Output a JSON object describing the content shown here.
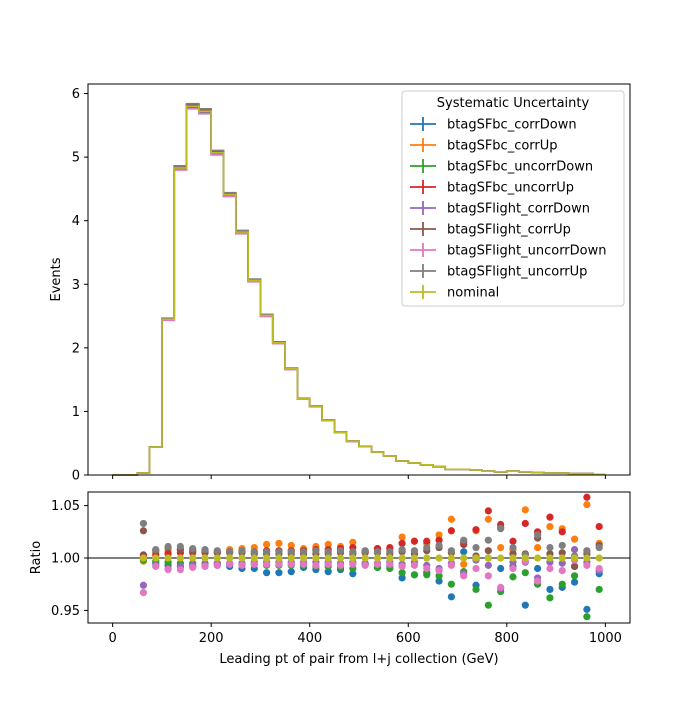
{
  "chart_data": [
    {
      "type": "line",
      "drawstyle": "steps",
      "xlabel": "",
      "ylabel": "Events",
      "xlim": [
        -50,
        1050
      ],
      "ylim": [
        0,
        6.15
      ],
      "x_ticks": [
        "0",
        "200",
        "400",
        "600",
        "800",
        "1000"
      ],
      "y_ticks": [
        "0",
        "1",
        "2",
        "3",
        "4",
        "5",
        "6"
      ],
      "bin_edges": [
        0,
        25,
        50,
        75,
        100,
        125,
        150,
        175,
        200,
        225,
        250,
        275,
        300,
        325,
        350,
        375,
        400,
        425,
        450,
        475,
        500,
        525,
        550,
        575,
        600,
        625,
        650,
        675,
        700,
        725,
        750,
        775,
        800,
        825,
        850,
        875,
        900,
        925,
        950,
        975,
        1000
      ],
      "nominal_values": [
        0.0,
        0.0,
        0.03,
        0.44,
        2.45,
        4.83,
        5.8,
        5.72,
        5.07,
        4.41,
        3.82,
        3.06,
        2.51,
        2.08,
        1.67,
        1.2,
        1.08,
        0.86,
        0.67,
        0.53,
        0.45,
        0.36,
        0.3,
        0.22,
        0.19,
        0.16,
        0.13,
        0.09,
        0.09,
        0.08,
        0.06,
        0.05,
        0.06,
        0.05,
        0.04,
        0.03,
        0.03,
        0.02,
        0.02,
        0.01
      ],
      "legend": {
        "title": "Systematic Uncertainty",
        "position": "upper right",
        "entries": [
          "btagSFbc_corrDown",
          "btagSFbc_corrUp",
          "btagSFbc_uncorrDown",
          "btagSFbc_uncorrUp",
          "btagSFlight_corrDown",
          "btagSFlight_corrUp",
          "btagSFlight_uncorrDown",
          "btagSFlight_uncorrUp",
          "nominal"
        ]
      }
    },
    {
      "type": "scatter",
      "xlabel": "Leading pt of pair from l+j collection (GeV)",
      "ylabel": "Ratio",
      "xlim": [
        -50,
        1050
      ],
      "ylim": [
        0.938,
        1.063
      ],
      "x_ticks": [
        "0",
        "200",
        "400",
        "600",
        "800",
        "1000"
      ],
      "y_ticks": [
        "0.95",
        "1.00",
        "1.05"
      ],
      "reference_line": 1.0,
      "x": [
        62.5,
        87.5,
        112.5,
        137.5,
        162.5,
        187.5,
        212.5,
        237.5,
        262.5,
        287.5,
        312.5,
        337.5,
        362.5,
        387.5,
        412.5,
        437.5,
        462.5,
        487.5,
        512.5,
        537.5,
        562.5,
        587.5,
        612.5,
        637.5,
        662.5,
        687.5,
        712.5,
        737.5,
        762.5,
        787.5,
        812.5,
        837.5,
        862.5,
        887.5,
        912.5,
        937.5,
        962.5,
        987.5
      ],
      "series": [
        {
          "name": "btagSFbc_corrDown",
          "values": [
            1.003,
            0.995,
            0.993,
            0.992,
            0.992,
            0.993,
            0.993,
            0.992,
            0.99,
            0.99,
            0.986,
            0.986,
            0.987,
            0.991,
            0.989,
            0.987,
            0.989,
            0.985,
            0.994,
            0.991,
            0.992,
            0.981,
            0.984,
            0.986,
            0.978,
            0.963,
            1.006,
            0.974,
            1.0,
            0.99,
            0.992,
            0.955,
            0.99,
            0.97,
            0.972,
            0.977,
            0.951,
            0.985
          ]
        },
        {
          "name": "btagSFbc_corrUp",
          "values": [
            0.997,
            1.005,
            1.007,
            1.008,
            1.007,
            1.007,
            1.006,
            1.008,
            1.009,
            1.01,
            1.013,
            1.014,
            1.012,
            1.009,
            1.011,
            1.013,
            1.011,
            1.015,
            1.006,
            1.009,
            1.008,
            1.02,
            1.016,
            1.014,
            1.022,
            1.037,
            0.994,
            1.026,
            1.037,
            1.01,
            1.008,
            1.046,
            1.01,
            1.03,
            1.028,
            1.018,
            1.051,
            1.014
          ]
        },
        {
          "name": "btagSFbc_uncorrDown",
          "values": [
            0.998,
            0.997,
            0.996,
            0.995,
            0.995,
            0.995,
            0.995,
            0.994,
            0.994,
            0.994,
            0.993,
            0.993,
            0.993,
            0.993,
            0.992,
            0.992,
            0.991,
            0.99,
            0.994,
            0.991,
            0.99,
            0.986,
            0.984,
            0.984,
            0.983,
            0.975,
            0.987,
            0.97,
            0.955,
            0.968,
            0.982,
            0.986,
            0.975,
            0.962,
            0.975,
            0.983,
            0.944,
            0.97
          ]
        },
        {
          "name": "btagSFbc_uncorrUp",
          "values": [
            1.002,
            1.003,
            1.004,
            1.005,
            1.005,
            1.005,
            1.005,
            1.006,
            1.006,
            1.006,
            1.007,
            1.007,
            1.007,
            1.007,
            1.008,
            1.008,
            1.009,
            1.01,
            1.006,
            1.009,
            1.01,
            1.014,
            1.016,
            1.016,
            1.017,
            1.026,
            1.013,
            1.027,
            1.045,
            1.032,
            1.016,
            1.033,
            1.025,
            1.039,
            1.025,
            0.992,
            1.058,
            1.03
          ]
        },
        {
          "name": "btagSFlight_corrDown",
          "values": [
            0.974,
            0.993,
            0.99,
            0.992,
            0.993,
            0.994,
            0.995,
            0.995,
            0.995,
            0.996,
            0.996,
            0.996,
            0.996,
            0.996,
            0.996,
            0.996,
            0.995,
            0.996,
            0.995,
            0.995,
            0.996,
            0.994,
            0.996,
            0.993,
            0.99,
            0.995,
            0.985,
            0.998,
            0.993,
            0.971,
            0.996,
            0.996,
            0.981,
            0.996,
            0.995,
            1.008,
            0.996,
            0.988
          ]
        },
        {
          "name": "btagSFlight_corrUp",
          "values": [
            1.026,
            1.007,
            1.01,
            1.008,
            1.007,
            1.006,
            1.005,
            1.005,
            1.005,
            1.004,
            1.004,
            1.004,
            1.004,
            1.004,
            1.004,
            1.004,
            1.005,
            1.004,
            1.005,
            1.005,
            1.004,
            1.006,
            1.004,
            1.007,
            1.01,
            1.005,
            1.015,
            1.002,
            1.007,
            1.029,
            1.004,
            1.004,
            1.019,
            1.004,
            1.005,
            0.992,
            1.004,
            1.012
          ]
        },
        {
          "name": "btagSFlight_uncorrDown",
          "values": [
            0.967,
            0.992,
            0.989,
            0.989,
            0.991,
            0.992,
            0.993,
            0.994,
            0.993,
            0.994,
            0.994,
            0.994,
            0.994,
            0.994,
            0.993,
            0.994,
            0.993,
            0.994,
            0.993,
            0.994,
            0.994,
            0.992,
            0.993,
            0.99,
            0.988,
            0.993,
            0.983,
            0.99,
            0.983,
            0.972,
            0.99,
            0.997,
            0.978,
            0.99,
            0.988,
            0.998,
            0.993,
            0.99
          ]
        },
        {
          "name": "btagSFlight_uncorrUp",
          "values": [
            1.033,
            1.008,
            1.011,
            1.011,
            1.009,
            1.008,
            1.007,
            1.006,
            1.007,
            1.006,
            1.006,
            1.006,
            1.006,
            1.006,
            1.007,
            1.006,
            1.007,
            1.006,
            1.007,
            1.006,
            1.006,
            1.008,
            1.007,
            1.01,
            1.012,
            1.007,
            1.017,
            1.01,
            1.017,
            1.028,
            1.01,
            1.003,
            1.022,
            1.01,
            1.012,
            1.002,
            1.007,
            1.01
          ]
        },
        {
          "name": "nominal",
          "values": [
            1.0,
            1.0,
            1.0,
            1.0,
            1.0,
            1.0,
            1.0,
            1.0,
            1.0,
            1.0,
            1.0,
            1.0,
            1.0,
            1.0,
            1.0,
            1.0,
            1.0,
            1.0,
            1.0,
            1.0,
            1.0,
            1.0,
            1.0,
            1.0,
            1.0,
            1.0,
            1.0,
            1.0,
            1.0,
            1.0,
            1.0,
            1.0,
            1.0,
            1.0,
            1.0,
            1.0,
            1.0,
            1.0
          ]
        }
      ]
    }
  ],
  "colors": {
    "btagSFbc_corrDown": "#1f77b4",
    "btagSFbc_corrUp": "#ff7f0e",
    "btagSFbc_uncorrDown": "#2ca02c",
    "btagSFbc_uncorrUp": "#d62728",
    "btagSFlight_corrDown": "#9467bd",
    "btagSFlight_corrUp": "#8c564b",
    "btagSFlight_uncorrDown": "#e377c2",
    "btagSFlight_uncorrUp": "#7f7f7f",
    "nominal": "#bcbd22"
  },
  "upper_series_factors": {
    "btagSFbc_corrDown": 0.995,
    "btagSFbc_corrUp": 1.005,
    "btagSFbc_uncorrDown": 0.996,
    "btagSFbc_uncorrUp": 1.004,
    "btagSFlight_corrDown": 0.995,
    "btagSFlight_corrUp": 1.005,
    "btagSFlight_uncorrDown": 0.993,
    "btagSFlight_uncorrUp": 1.007,
    "nominal": 1.0
  }
}
